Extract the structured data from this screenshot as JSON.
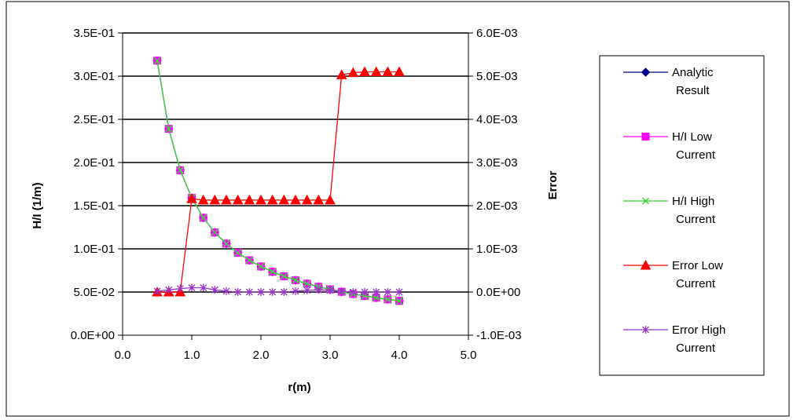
{
  "chart_data": {
    "type": "line",
    "title": "",
    "xlabel": "r(m)",
    "ylabel": "H/I (1/m)",
    "y2label": "Error",
    "xlim": [
      0.0,
      5.0
    ],
    "ylim": [
      0.0,
      0.35
    ],
    "y2lim": [
      -0.001,
      0.006
    ],
    "grid": "horizontal",
    "legend": "right",
    "xticks": [
      "0.0",
      "1.0",
      "2.0",
      "3.0",
      "4.0",
      "5.0"
    ],
    "yticks": [
      "0.0E+00",
      "5.0E-02",
      "1.0E-01",
      "1.5E-01",
      "2.0E-01",
      "2.5E-01",
      "3.0E-01",
      "3.5E-01"
    ],
    "y2ticks": [
      "-1.0E-03",
      "0.0E+00",
      "1.0E-03",
      "2.0E-03",
      "3.0E-03",
      "4.0E-03",
      "5.0E-03",
      "6.0E-03"
    ],
    "x": [
      0.5,
      0.667,
      0.833,
      1.0,
      1.167,
      1.333,
      1.5,
      1.667,
      1.833,
      2.0,
      2.167,
      2.333,
      2.5,
      2.667,
      2.833,
      3.0,
      3.167,
      3.333,
      3.5,
      3.667,
      3.833,
      4.0
    ],
    "series": [
      {
        "name": "Analytic Result",
        "axis": "left",
        "color": "#00008B",
        "marker": "diamond",
        "values": [
          0.318,
          0.239,
          0.191,
          0.159,
          0.136,
          0.119,
          0.106,
          0.0955,
          0.0868,
          0.0796,
          0.0735,
          0.0682,
          0.0637,
          0.0597,
          0.0562,
          0.0531,
          0.0503,
          0.0477,
          0.0455,
          0.0434,
          0.0415,
          0.0398
        ]
      },
      {
        "name": "H/I Low Current",
        "axis": "left",
        "color": "#FF00FF",
        "marker": "square",
        "values": [
          0.318,
          0.239,
          0.191,
          0.159,
          0.136,
          0.119,
          0.106,
          0.0955,
          0.0868,
          0.0796,
          0.0735,
          0.0682,
          0.0637,
          0.0597,
          0.0562,
          0.0531,
          0.0503,
          0.0477,
          0.0455,
          0.0434,
          0.0415,
          0.0398
        ]
      },
      {
        "name": "H/I High Current",
        "axis": "left",
        "color": "#33DD33",
        "marker": "x",
        "values": [
          0.318,
          0.239,
          0.191,
          0.159,
          0.136,
          0.119,
          0.106,
          0.0955,
          0.0868,
          0.0796,
          0.0735,
          0.0682,
          0.0637,
          0.0597,
          0.0562,
          0.0531,
          0.0503,
          0.0477,
          0.0455,
          0.0434,
          0.0415,
          0.0398
        ]
      },
      {
        "name": "Error Low Current",
        "axis": "right",
        "color": "#FF0000",
        "marker": "triangle",
        "values": [
          0.0,
          0.0,
          0.0,
          0.00216,
          0.00213,
          0.00213,
          0.00213,
          0.00213,
          0.00213,
          0.00213,
          0.00213,
          0.00213,
          0.00213,
          0.00213,
          0.00213,
          0.00213,
          0.00503,
          0.00508,
          0.0051,
          0.0051,
          0.0051,
          0.0051
        ]
      },
      {
        "name": "Error High Current",
        "axis": "right",
        "color": "#9933CC",
        "marker": "asterisk",
        "values": [
          2e-05,
          5e-05,
          8e-05,
          0.0001,
          0.0001,
          5e-05,
          2e-05,
          0.0,
          0.0,
          0.0,
          0.0,
          0.0,
          2e-05,
          4e-05,
          5e-05,
          4e-05,
          2e-05,
          0.0,
          0.0,
          0.0,
          0.0,
          0.0
        ]
      }
    ],
    "legend_entries": [
      {
        "line1": "Analytic",
        "line2": "Result"
      },
      {
        "line1": "H/I Low",
        "line2": "Current"
      },
      {
        "line1": "H/I High",
        "line2": "Current"
      },
      {
        "line1": "Error Low",
        "line2": "Current"
      },
      {
        "line1": "Error High",
        "line2": "Current"
      }
    ]
  }
}
